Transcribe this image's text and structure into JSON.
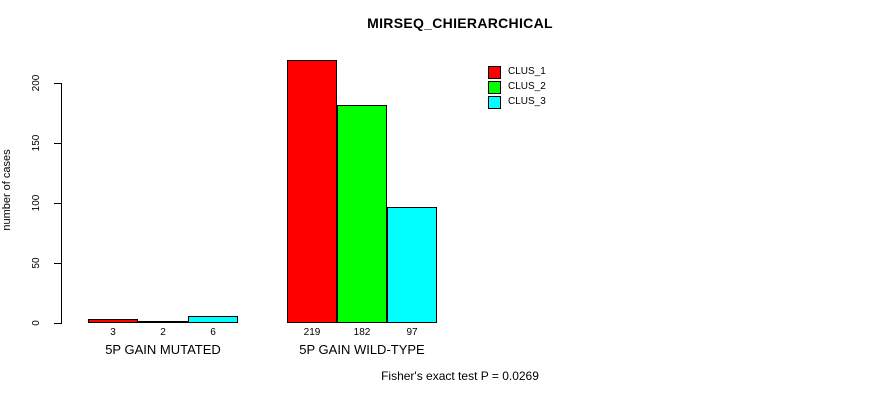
{
  "chart_data": {
    "type": "bar",
    "title": "MIRSEQ_CHIERARCHICAL",
    "ylabel": "number of cases",
    "xlabel": "",
    "categories": [
      "5P GAIN MUTATED",
      "5P GAIN WILD-TYPE"
    ],
    "series": [
      {
        "name": "CLUS_1",
        "color": "#ff0000",
        "values": [
          3,
          219
        ]
      },
      {
        "name": "CLUS_2",
        "color": "#00ff00",
        "values": [
          2,
          182
        ]
      },
      {
        "name": "CLUS_3",
        "color": "#00ffff",
        "values": [
          6,
          97
        ]
      }
    ],
    "yticks": [
      0,
      50,
      100,
      150,
      200
    ],
    "ylim": [
      0,
      220
    ],
    "grid": false,
    "legend_position": "top-right",
    "bar_value_labels": [
      [
        "3",
        "2",
        "6"
      ],
      [
        "219",
        "182",
        "97"
      ]
    ]
  },
  "footer": {
    "caption": "Fisher's exact test P = 0.0269"
  }
}
